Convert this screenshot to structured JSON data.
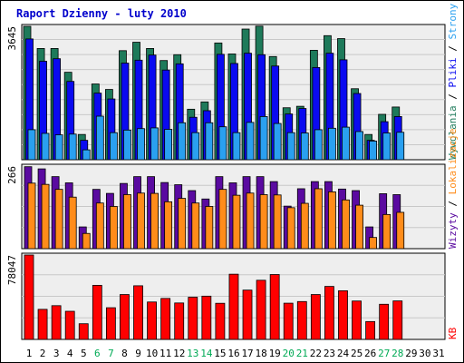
{
  "title": "Raport Dzienny -  luty 2010",
  "colors": {
    "background": "#ffffff",
    "plot_background": "#eeeeee",
    "grid": "#c8c8c8",
    "border": "#000000",
    "title": "#0000cc",
    "hits": "#1e7a5a",
    "files": "#0a0af0",
    "pages": "#2aa0f0",
    "visits": "#5a0aa0",
    "sites": "#ff8c1a",
    "kbytes": "#ff0000",
    "weekend_label": "#00aa55",
    "day_label": "#000000"
  },
  "chart_data": [
    {
      "type": "bar",
      "name": "hits-files-pages",
      "y_max_label": "3645",
      "ylim": [
        0,
        3645
      ],
      "grid": true,
      "legend": "right",
      "legend_items": [
        {
          "text": "Wywołania",
          "color": "#1e7a5a"
        },
        {
          "text": "Pliki",
          "color": "#0a0af0"
        },
        {
          "text": "Strony",
          "color": "#2aa0f0"
        }
      ],
      "categories": [
        "1",
        "2",
        "3",
        "4",
        "5",
        "6",
        "7",
        "8",
        "9",
        "10",
        "11",
        "12",
        "13",
        "14",
        "15",
        "16",
        "17",
        "18",
        "19",
        "20",
        "21",
        "22",
        "23",
        "24",
        "25",
        "26",
        "27",
        "28"
      ],
      "series": [
        {
          "name": "Wywołania",
          "values": [
            3645,
            3040,
            3040,
            2390,
            690,
            2070,
            1920,
            2980,
            3210,
            3040,
            2710,
            2870,
            1380,
            1580,
            3190,
            2890,
            3570,
            3650,
            2820,
            1420,
            1460,
            2990,
            3390,
            3310,
            1940,
            690,
            1240,
            1440
          ]
        },
        {
          "name": "Pliki",
          "values": [
            3300,
            2690,
            2760,
            2140,
            530,
            1820,
            1660,
            2640,
            2720,
            2860,
            2450,
            2620,
            1160,
            1340,
            2880,
            2630,
            2910,
            2870,
            2560,
            1250,
            1400,
            2520,
            2910,
            2730,
            1810,
            530,
            1040,
            1180
          ]
        },
        {
          "name": "Strony",
          "values": [
            820,
            720,
            680,
            700,
            270,
            1190,
            740,
            810,
            850,
            870,
            830,
            1010,
            740,
            1010,
            900,
            740,
            1020,
            1180,
            990,
            740,
            730,
            820,
            860,
            890,
            770,
            510,
            730,
            750
          ]
        }
      ]
    },
    {
      "type": "bar",
      "name": "visits-sites",
      "y_max_label": "266",
      "ylim": [
        0,
        266
      ],
      "grid": true,
      "legend": "right",
      "legend_items": [
        {
          "text": "Wizyty",
          "color": "#5a0aa0"
        },
        {
          "text": "Lokalizacje",
          "color": "#ff8c1a"
        }
      ],
      "categories": [
        "1",
        "2",
        "3",
        "4",
        "5",
        "6",
        "7",
        "8",
        "9",
        "10",
        "11",
        "12",
        "13",
        "14",
        "15",
        "16",
        "17",
        "18",
        "19",
        "20",
        "21",
        "22",
        "23",
        "24",
        "25",
        "26",
        "27",
        "28"
      ],
      "series": [
        {
          "name": "Wizyty",
          "values": [
            264,
            257,
            232,
            212,
            70,
            191,
            178,
            210,
            232,
            232,
            213,
            206,
            187,
            160,
            232,
            212,
            232,
            232,
            216,
            137,
            193,
            216,
            216,
            192,
            187,
            70,
            177,
            174
          ]
        },
        {
          "name": "Lokalizacje",
          "values": [
            211,
            207,
            191,
            166,
            49,
            147,
            136,
            174,
            179,
            178,
            151,
            162,
            147,
            136,
            191,
            172,
            179,
            174,
            173,
            132,
            146,
            193,
            183,
            157,
            140,
            36,
            110,
            117
          ]
        }
      ]
    },
    {
      "type": "bar",
      "name": "kbytes",
      "y_max_label": "78047",
      "ylim": [
        0,
        78047
      ],
      "grid": true,
      "legend": "right",
      "legend_items": [
        {
          "text": "KB",
          "color": "#ff0000"
        }
      ],
      "categories": [
        "1",
        "2",
        "3",
        "4",
        "5",
        "6",
        "7",
        "8",
        "9",
        "10",
        "11",
        "12",
        "13",
        "14",
        "15",
        "16",
        "17",
        "18",
        "19",
        "20",
        "21",
        "22",
        "23",
        "24",
        "25",
        "26",
        "27",
        "28"
      ],
      "series": [
        {
          "name": "KB",
          "values": [
            78047,
            27800,
            31200,
            26000,
            14500,
            50000,
            29300,
            41500,
            49600,
            34600,
            37900,
            33700,
            39000,
            40000,
            33400,
            60300,
            45600,
            54700,
            60000,
            33500,
            35000,
            41500,
            49000,
            45000,
            35500,
            16500,
            32500,
            35600
          ]
        }
      ]
    }
  ],
  "x_labels": [
    {
      "text": "1",
      "weekend": false
    },
    {
      "text": "2",
      "weekend": false
    },
    {
      "text": "3",
      "weekend": false
    },
    {
      "text": "4",
      "weekend": false
    },
    {
      "text": "5",
      "weekend": false
    },
    {
      "text": "6",
      "weekend": true
    },
    {
      "text": "7",
      "weekend": true
    },
    {
      "text": "8",
      "weekend": false
    },
    {
      "text": "9",
      "weekend": false
    },
    {
      "text": "10",
      "weekend": false
    },
    {
      "text": "11",
      "weekend": false
    },
    {
      "text": "12",
      "weekend": false
    },
    {
      "text": "13",
      "weekend": true
    },
    {
      "text": "14",
      "weekend": true
    },
    {
      "text": "15",
      "weekend": false
    },
    {
      "text": "16",
      "weekend": false
    },
    {
      "text": "17",
      "weekend": false
    },
    {
      "text": "18",
      "weekend": false
    },
    {
      "text": "19",
      "weekend": false
    },
    {
      "text": "20",
      "weekend": true
    },
    {
      "text": "21",
      "weekend": true
    },
    {
      "text": "22",
      "weekend": false
    },
    {
      "text": "23",
      "weekend": false
    },
    {
      "text": "24",
      "weekend": false
    },
    {
      "text": "25",
      "weekend": false
    },
    {
      "text": "26",
      "weekend": false
    },
    {
      "text": "27",
      "weekend": true
    },
    {
      "text": "28",
      "weekend": true
    },
    {
      "text": "29",
      "weekend": false
    },
    {
      "text": "30",
      "weekend": false
    },
    {
      "text": "31",
      "weekend": false
    }
  ]
}
